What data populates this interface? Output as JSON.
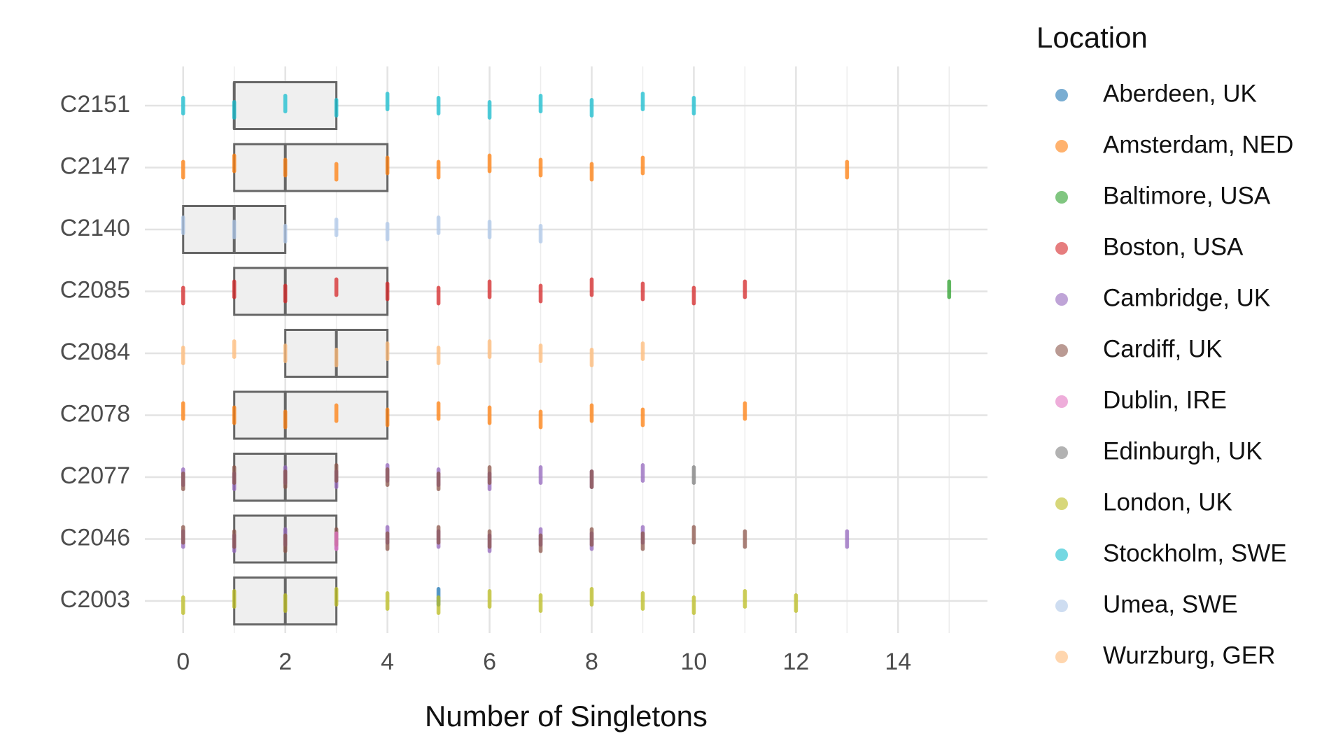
{
  "chart_data": {
    "type": "boxplot_strip",
    "x_label": "Number of Singletons",
    "legend_title": "Location",
    "legend": "right",
    "grid": true,
    "categories": [
      "C2151",
      "C2147",
      "C2140",
      "C2085",
      "C2084",
      "C2078",
      "C2077",
      "C2046",
      "C2003"
    ],
    "boxes": {
      "q1": [
        1,
        1,
        0,
        1,
        2,
        1,
        1,
        1,
        1
      ],
      "median": [
        1,
        2,
        1,
        2,
        3,
        2,
        2,
        2,
        2
      ],
      "q3": [
        3,
        4,
        2,
        4,
        4,
        4,
        3,
        3,
        3
      ]
    },
    "xlim": [
      -0.75,
      15.75
    ],
    "xticks": [
      0,
      2,
      4,
      6,
      8,
      10,
      12,
      14
    ],
    "x_minor_ticks": [
      1,
      3,
      5,
      7,
      9,
      11,
      13,
      15
    ],
    "series": [
      {
        "name": "Aberdeen, UK",
        "color": "#1f77b4",
        "x": [
          5
        ],
        "y": [
          "C2003"
        ]
      },
      {
        "name": "Amsterdam, NED",
        "color": "#ff7f0e",
        "x": [
          0,
          1,
          2,
          3,
          4,
          5,
          6,
          7,
          8,
          9,
          13,
          0,
          1,
          2,
          3,
          4,
          5,
          6,
          7,
          8,
          9,
          11
        ],
        "y": [
          "C2147",
          "C2147",
          "C2147",
          "C2147",
          "C2147",
          "C2147",
          "C2147",
          "C2147",
          "C2147",
          "C2147",
          "C2147",
          "C2078",
          "C2078",
          "C2078",
          "C2078",
          "C2078",
          "C2078",
          "C2078",
          "C2078",
          "C2078",
          "C2078",
          "C2078"
        ]
      },
      {
        "name": "Baltimore, USA",
        "color": "#2ca02c",
        "x": [
          15
        ],
        "y": [
          "C2085"
        ]
      },
      {
        "name": "Boston, USA",
        "color": "#d62728",
        "x": [
          0,
          1,
          2,
          3,
          4,
          5,
          6,
          7,
          8,
          9,
          10,
          11
        ],
        "y": [
          "C2085",
          "C2085",
          "C2085",
          "C2085",
          "C2085",
          "C2085",
          "C2085",
          "C2085",
          "C2085",
          "C2085",
          "C2085",
          "C2085"
        ]
      },
      {
        "name": "Cambridge, UK",
        "color": "#9467bd",
        "x": [
          0,
          1,
          2,
          3,
          4,
          5,
          6,
          7,
          8,
          9,
          0,
          1,
          2,
          3,
          4,
          5,
          6,
          7,
          8,
          9,
          13
        ],
        "y": [
          "C2077",
          "C2077",
          "C2077",
          "C2077",
          "C2077",
          "C2077",
          "C2077",
          "C2077",
          "C2077",
          "C2077",
          "C2046",
          "C2046",
          "C2046",
          "C2046",
          "C2046",
          "C2046",
          "C2046",
          "C2046",
          "C2046",
          "C2046",
          "C2046"
        ]
      },
      {
        "name": "Cardiff, UK",
        "color": "#8c564b",
        "x": [
          0,
          1,
          2,
          3,
          4,
          5,
          6,
          7,
          8,
          9,
          10,
          11,
          0,
          1,
          2,
          3,
          4,
          5,
          6,
          8
        ],
        "y": [
          "C2046",
          "C2046",
          "C2046",
          "C2046",
          "C2046",
          "C2046",
          "C2046",
          "C2046",
          "C2046",
          "C2046",
          "C2046",
          "C2046",
          "C2077",
          "C2077",
          "C2077",
          "C2077",
          "C2077",
          "C2077",
          "C2077",
          "C2077"
        ]
      },
      {
        "name": "Dublin, IRE",
        "color": "#e377c2",
        "x": [
          3
        ],
        "y": [
          "C2046"
        ]
      },
      {
        "name": "Edinburgh, UK",
        "color": "#7f7f7f",
        "x": [
          10
        ],
        "y": [
          "C2077"
        ]
      },
      {
        "name": "London, UK",
        "color": "#bcbd22",
        "x": [
          0,
          1,
          2,
          3,
          4,
          5,
          6,
          7,
          8,
          9,
          10,
          11,
          12
        ],
        "y": [
          "C2003",
          "C2003",
          "C2003",
          "C2003",
          "C2003",
          "C2003",
          "C2003",
          "C2003",
          "C2003",
          "C2003",
          "C2003",
          "C2003",
          "C2003"
        ]
      },
      {
        "name": "Stockholm, SWE",
        "color": "#17becf",
        "x": [
          0,
          1,
          2,
          3,
          4,
          5,
          6,
          7,
          8,
          9,
          10
        ],
        "y": [
          "C2151",
          "C2151",
          "C2151",
          "C2151",
          "C2151",
          "C2151",
          "C2151",
          "C2151",
          "C2151",
          "C2151",
          "C2151"
        ]
      },
      {
        "name": "Umea, SWE",
        "color": "#aec7e8",
        "x": [
          0,
          1,
          2,
          3,
          4,
          5,
          6,
          7
        ],
        "y": [
          "C2140",
          "C2140",
          "C2140",
          "C2140",
          "C2140",
          "C2140",
          "C2140",
          "C2140"
        ]
      },
      {
        "name": "Wurzburg, GER",
        "color": "#ffbb78",
        "x": [
          0,
          1,
          2,
          3,
          4,
          5,
          6,
          7,
          8,
          9
        ],
        "y": [
          "C2084",
          "C2084",
          "C2084",
          "C2084",
          "C2084",
          "C2084",
          "C2084",
          "C2084",
          "C2084",
          "C2084"
        ]
      }
    ]
  }
}
